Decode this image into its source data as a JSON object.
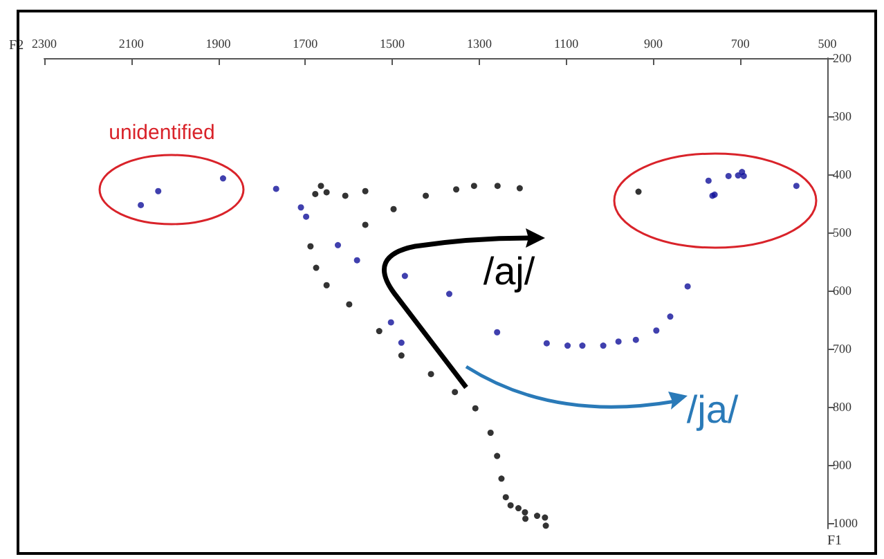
{
  "chart_data": {
    "type": "scatter",
    "xlabel": "F2",
    "ylabel": "F1",
    "xlim": [
      2300,
      500
    ],
    "ylim": [
      1010,
      200
    ],
    "xticks": [
      2300,
      2100,
      1900,
      1700,
      1500,
      1300,
      1100,
      900,
      700,
      500
    ],
    "yticks": [
      200,
      300,
      400,
      500,
      600,
      700,
      800,
      900,
      1000
    ],
    "grid": false,
    "marker": "circle",
    "annotations": [
      "unidentified",
      "/aj/",
      "/ja/"
    ],
    "series": [
      {
        "color": "#000000",
        "x": [
          1664,
          1677,
          1651,
          1608,
          1562,
          1497,
          1562,
          1423,
          1353,
          1312,
          1258,
          1207,
          934,
          1688,
          1675,
          1651,
          1599,
          1530,
          1479,
          1411,
          1356,
          1309,
          1274,
          1259,
          1249,
          1239,
          1228,
          1210,
          1195,
          1194,
          1167,
          1149,
          1147
        ],
        "values": [
          420,
          434,
          431,
          437,
          429,
          460,
          487,
          437,
          426,
          420,
          420,
          424,
          430,
          524,
          561,
          591,
          624,
          670,
          712,
          744,
          775,
          803,
          845,
          885,
          924,
          956,
          970,
          975,
          982,
          993,
          988,
          991,
          1005
        ]
      },
      {
        "color": "#10109a",
        "x": [
          2078,
          2038,
          1889,
          1767,
          1710,
          1698,
          1625,
          1581,
          1471,
          1503,
          1479,
          1369,
          1259,
          1145,
          1097,
          1063,
          1015,
          980,
          940,
          893,
          861,
          821,
          773,
          764,
          759,
          727,
          705,
          696,
          692,
          571
        ],
        "values": [
          453,
          429,
          407,
          425,
          457,
          473,
          522,
          548,
          575,
          655,
          690,
          606,
          672,
          691,
          695,
          695,
          695,
          688,
          685,
          669,
          645,
          593,
          411,
          437,
          435,
          403,
          402,
          396,
          403,
          420
        ]
      }
    ]
  }
}
